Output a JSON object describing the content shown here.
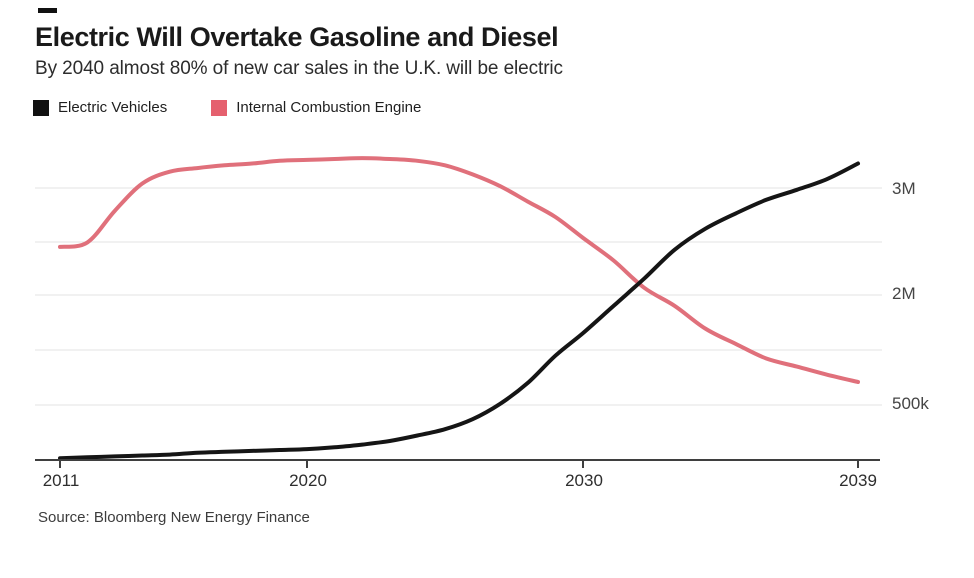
{
  "header": {
    "title": "Electric Will Overtake Gasoline and Diesel",
    "subtitle": "By 2040 almost 80% of new car sales in the U.K. will be electric"
  },
  "source_note": "Source: Bloomberg New Energy Finance",
  "colors": {
    "ev_line": "#151515",
    "ice_line": "#e0707b",
    "ice_swatch": "#e5606e",
    "ev_swatch": "#111111",
    "gridline": "#e3e3e3",
    "axis": "#3f3f3f"
  },
  "chart_data": {
    "type": "line",
    "title": "Electric Will Overtake Gasoline and Diesel",
    "subtitle": "By 2040 almost 80% of new car sales in the U.K. will be electric",
    "xlabel": "",
    "ylabel": "",
    "xlim": [
      2011,
      2039
    ],
    "ylim": [
      0,
      3.5
    ],
    "grid": "horizontal",
    "legend_position": "top-left",
    "units": "new car sales per year, millions",
    "x": [
      2011,
      2012,
      2013,
      2014,
      2015,
      2016,
      2017,
      2018,
      2019,
      2020,
      2021,
      2022,
      2023,
      2024,
      2025,
      2026,
      2027,
      2028,
      2029,
      2030,
      2031,
      2032,
      2033,
      2034,
      2035,
      2036,
      2037,
      2038,
      2039
    ],
    "series": [
      {
        "name": "Electric Vehicles",
        "color": "#151515",
        "swatch_color": "#111111",
        "values": [
          0.02,
          0.03,
          0.04,
          0.05,
          0.06,
          0.08,
          0.09,
          0.1,
          0.11,
          0.12,
          0.14,
          0.17,
          0.21,
          0.27,
          0.34,
          0.45,
          0.62,
          0.85,
          1.15,
          1.4,
          1.7,
          2.0,
          2.32,
          2.55,
          2.72,
          2.87,
          2.98,
          3.1,
          3.27
        ]
      },
      {
        "name": "Internal Combustion Engine",
        "color": "#e0707b",
        "swatch_color": "#e5606e",
        "values": [
          2.35,
          2.4,
          2.75,
          3.05,
          3.18,
          3.22,
          3.25,
          3.27,
          3.3,
          3.31,
          3.32,
          3.33,
          3.32,
          3.3,
          3.25,
          3.15,
          3.02,
          2.85,
          2.68,
          2.45,
          2.2,
          1.9,
          1.7,
          1.45,
          1.28,
          1.12,
          1.03,
          0.94,
          0.86
        ]
      }
    ],
    "x_ticks": [
      {
        "year": 2011,
        "label": "2011"
      },
      {
        "year": 2020,
        "label": "2020"
      },
      {
        "year": 2030,
        "label": "2030"
      },
      {
        "year": 2039,
        "label": "2039"
      }
    ],
    "y_ticks": [
      {
        "label": "3M",
        "value": 3.0
      },
      {
        "label": "2M",
        "value": 2.0
      },
      {
        "label": "500k",
        "value": 0.5
      }
    ]
  }
}
